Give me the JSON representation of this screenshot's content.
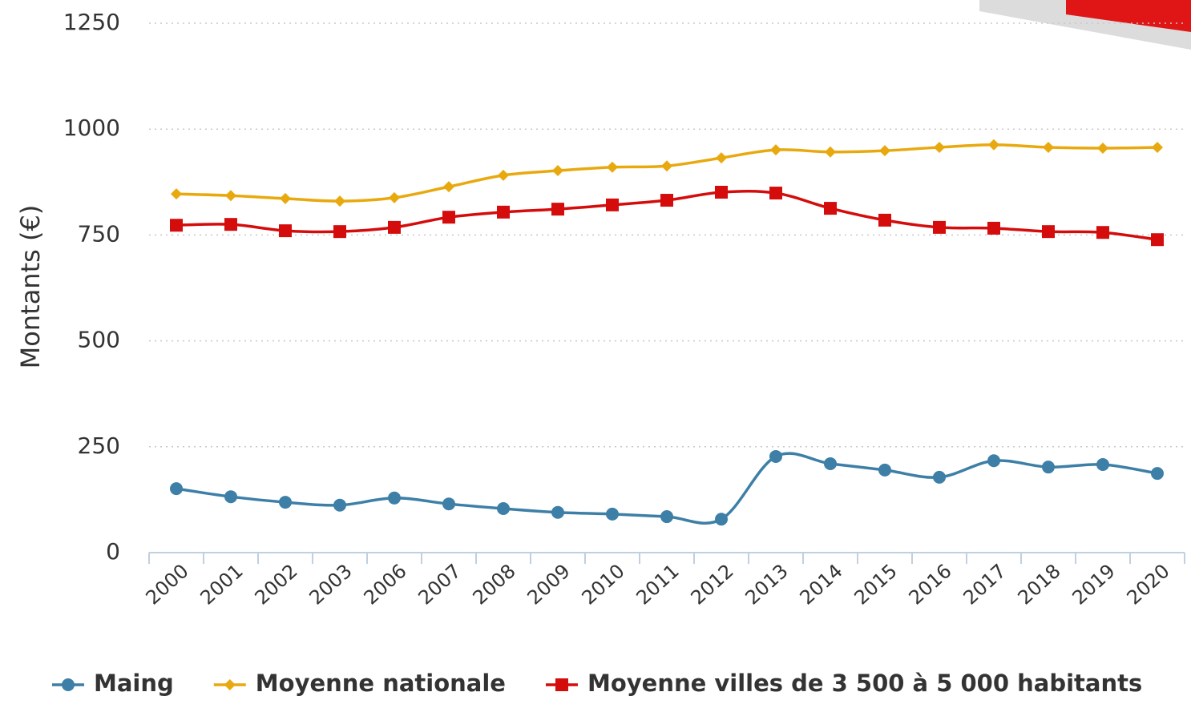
{
  "chart_data": {
    "type": "line",
    "y_label": "Montants (€)",
    "categories": [
      "2000",
      "2001",
      "2002",
      "2003",
      "2006",
      "2007",
      "2008",
      "2009",
      "2010",
      "2011",
      "2012",
      "2013",
      "2014",
      "2015",
      "2016",
      "2017",
      "2018",
      "2019",
      "2020"
    ],
    "series": [
      {
        "name": "Maing",
        "color": "#3d7fa6",
        "marker": "circle",
        "values": [
          151,
          132,
          119,
          112,
          129,
          115,
          104,
          95,
          91,
          85,
          79,
          227,
          210,
          195,
          178,
          217,
          202,
          208,
          187
        ]
      },
      {
        "name": "Moyenne nationale",
        "color": "#e8a90e",
        "marker": "diamond",
        "values": [
          847,
          843,
          836,
          830,
          838,
          864,
          891,
          902,
          910,
          913,
          932,
          951,
          946,
          949,
          957,
          963,
          957,
          955,
          957
        ]
      },
      {
        "name": "Moyenne villes de 3 500 à 5 000 habitants",
        "color": "#d40c0c",
        "marker": "square",
        "values": [
          773,
          775,
          760,
          758,
          768,
          792,
          804,
          811,
          821,
          832,
          851,
          849,
          813,
          785,
          768,
          766,
          758,
          756,
          739
        ]
      }
    ],
    "ylim": [
      0,
      1250
    ],
    "yticks": [
      0,
      250,
      500,
      750,
      1000,
      1250
    ],
    "grid": true
  }
}
